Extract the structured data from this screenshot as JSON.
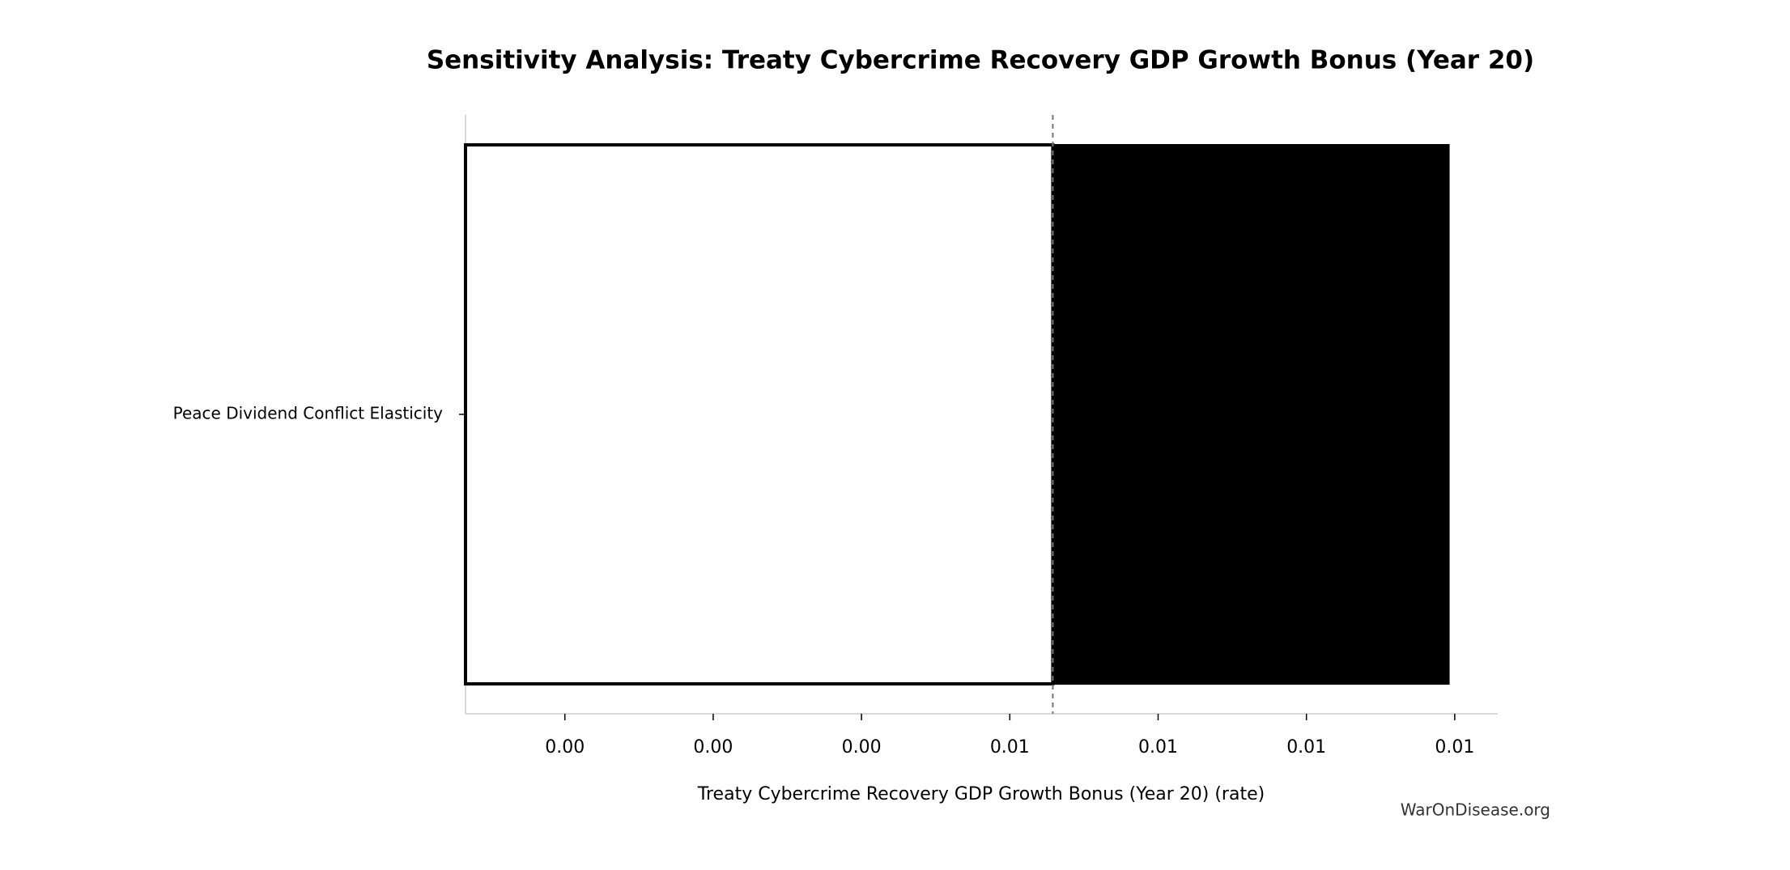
{
  "chart_data": {
    "type": "tornado",
    "title": "Sensitivity Analysis: Treaty Cybercrime Recovery GDP Growth Bonus (Year 20)",
    "xlabel": "Treaty Cybercrime Recovery GDP Growth Bonus (Year 20) (rate)",
    "watermark": "WarOnDisease.org",
    "categories": [
      "Peace Dividend Conflict Elasticity"
    ],
    "baseline": 0.00529,
    "low_values": [
      0.00133
    ],
    "high_values": [
      0.00796
    ],
    "low_color": "#ffffff",
    "high_color": "#000000",
    "xlim": [
      0.00133,
      0.00829
    ],
    "xticks": [
      {
        "value": 0.002,
        "label": "0.00"
      },
      {
        "value": 0.003,
        "label": "0.00"
      },
      {
        "value": 0.004,
        "label": "0.00"
      },
      {
        "value": 0.005,
        "label": "0.01"
      },
      {
        "value": 0.006,
        "label": "0.01"
      },
      {
        "value": 0.007,
        "label": "0.01"
      },
      {
        "value": 0.008,
        "label": "0.01"
      }
    ]
  }
}
